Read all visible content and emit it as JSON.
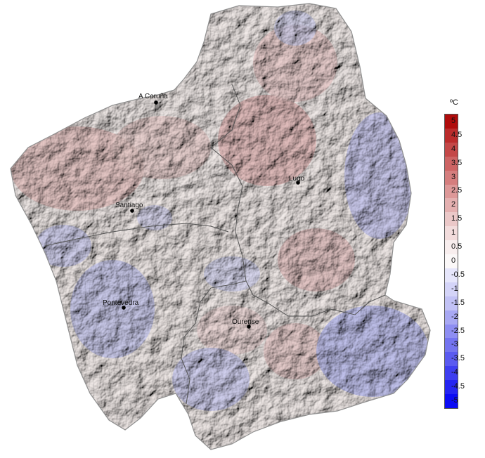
{
  "legend": {
    "unit": "ºC",
    "ticks": [
      "5",
      "4.5",
      "4",
      "3.5",
      "3",
      "2.5",
      "2",
      "1.5",
      "1",
      "0.5",
      "0",
      "-0.5",
      "-1",
      "-1.5",
      "-2",
      "-2.5",
      "-3",
      "-3.5",
      "-4",
      "-4.5",
      "-5"
    ],
    "colors": [
      "#b00c0c",
      "#bb2c2c",
      "#c44848",
      "#cd6464",
      "#d57e7e",
      "#dd9898",
      "#e4b0b0",
      "#ebc8c8",
      "#f2dcdc",
      "#f8eeee",
      "#fbf8f8",
      "#e6e6fb",
      "#d4d4f8",
      "#c2c2f5",
      "#a8a8f3",
      "#8e8ef2",
      "#7474f0",
      "#5a5af0",
      "#3e3ef0",
      "#2424f2",
      "#0c0cf5"
    ]
  },
  "cities": [
    {
      "name": "A Coruña"
    },
    {
      "name": "Lugo"
    },
    {
      "name": "Santiago"
    },
    {
      "name": "Pontevedra"
    },
    {
      "name": "Ourense"
    }
  ]
}
